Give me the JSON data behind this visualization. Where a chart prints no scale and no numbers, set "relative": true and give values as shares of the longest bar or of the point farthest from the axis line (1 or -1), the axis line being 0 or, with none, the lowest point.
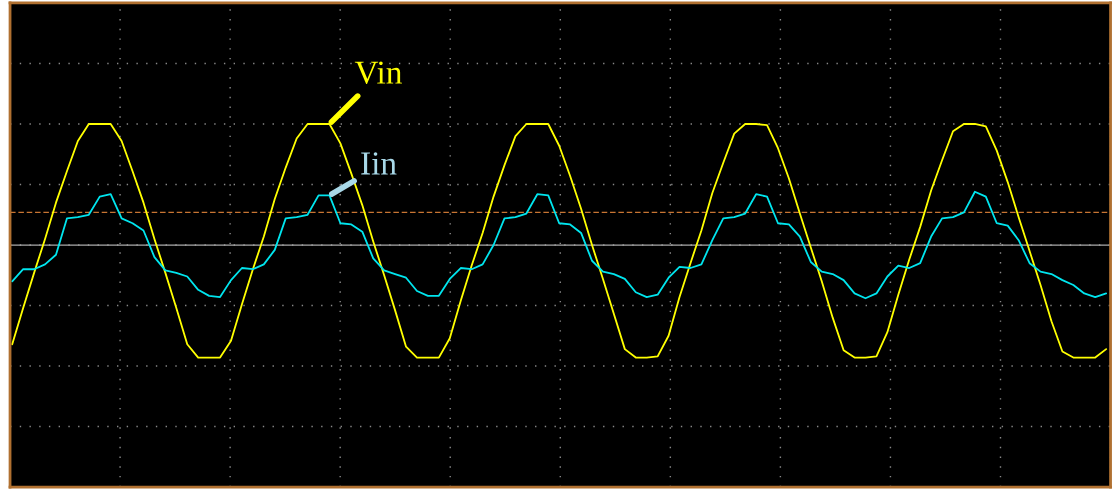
{
  "chart_data": {
    "type": "line",
    "relative": true,
    "categories": [
      null,
      null,
      null,
      null,
      null,
      null,
      null,
      null,
      null,
      null,
      null,
      null,
      null,
      null,
      null,
      null,
      null,
      null,
      null,
      null,
      null,
      null,
      null,
      null,
      null,
      null,
      null,
      null,
      null,
      null,
      null,
      null,
      null,
      null,
      null,
      null,
      null,
      null,
      null,
      null,
      null,
      null,
      null,
      null,
      null,
      null,
      null,
      null,
      null,
      null,
      null,
      null,
      null,
      null,
      null,
      null,
      null,
      null,
      null,
      null,
      null,
      null,
      null,
      null,
      null,
      null,
      null,
      null,
      null,
      null,
      null,
      null,
      null,
      null,
      null,
      null,
      null,
      null,
      null,
      null,
      null,
      null,
      null,
      null,
      null,
      null,
      null,
      null,
      null,
      null,
      null,
      null,
      null,
      null,
      null,
      null,
      null,
      null,
      null,
      null,
      null
    ],
    "series": [
      {
        "name": "Vin",
        "color": "#ffff00",
        "values": [
          -0.82,
          -0.52,
          -0.23,
          0.05,
          0.35,
          0.61,
          0.86,
          1.0,
          1.0,
          1.0,
          0.86,
          0.61,
          0.35,
          0.05,
          -0.23,
          -0.52,
          -0.82,
          -0.93,
          -0.93,
          -0.93,
          -0.79,
          -0.49,
          -0.2,
          0.07,
          0.38,
          0.64,
          0.88,
          1.0,
          1.0,
          1.0,
          0.84,
          0.59,
          0.33,
          0.03,
          -0.25,
          -0.54,
          -0.84,
          -0.93,
          -0.93,
          -0.93,
          -0.77,
          -0.46,
          -0.17,
          0.1,
          0.4,
          0.66,
          0.9,
          1.0,
          1.0,
          1.0,
          0.82,
          0.57,
          0.3,
          0.0,
          -0.28,
          -0.57,
          -0.86,
          -0.93,
          -0.93,
          -0.92,
          -0.75,
          -0.43,
          -0.15,
          0.12,
          0.43,
          0.68,
          0.92,
          1.0,
          1.0,
          0.99,
          0.8,
          0.55,
          0.26,
          -0.02,
          -0.3,
          -0.6,
          -0.87,
          -0.93,
          -0.93,
          -0.92,
          -0.72,
          -0.41,
          -0.12,
          0.15,
          0.45,
          0.7,
          0.94,
          1.0,
          1.0,
          0.98,
          0.78,
          0.52,
          0.23,
          -0.05,
          -0.33,
          -0.63,
          -0.88,
          -0.93,
          -0.93,
          -0.93,
          -0.86
        ]
      },
      {
        "name": "Iin",
        "color": "#00e5ee",
        "values": [
          -0.3,
          -0.2,
          -0.2,
          -0.16,
          -0.08,
          0.22,
          0.23,
          0.25,
          0.4,
          0.42,
          0.22,
          0.18,
          0.12,
          -0.1,
          -0.21,
          -0.23,
          -0.26,
          -0.37,
          -0.42,
          -0.43,
          -0.29,
          -0.19,
          -0.2,
          -0.16,
          -0.04,
          0.22,
          0.23,
          0.25,
          0.41,
          0.41,
          0.18,
          0.17,
          0.11,
          -0.11,
          -0.21,
          -0.24,
          -0.27,
          -0.38,
          -0.42,
          -0.42,
          -0.28,
          -0.19,
          -0.2,
          -0.16,
          0.0,
          0.22,
          0.23,
          0.26,
          0.42,
          0.41,
          0.18,
          0.17,
          0.1,
          -0.13,
          -0.22,
          -0.24,
          -0.28,
          -0.39,
          -0.43,
          -0.41,
          -0.27,
          -0.18,
          -0.19,
          -0.16,
          0.04,
          0.22,
          0.23,
          0.26,
          0.42,
          0.4,
          0.18,
          0.17,
          0.07,
          -0.14,
          -0.22,
          -0.24,
          -0.29,
          -0.4,
          -0.44,
          -0.4,
          -0.26,
          -0.17,
          -0.19,
          -0.15,
          0.07,
          0.22,
          0.23,
          0.27,
          0.44,
          0.4,
          0.18,
          0.16,
          0.04,
          -0.15,
          -0.22,
          -0.24,
          -0.29,
          -0.33,
          -0.4,
          -0.43,
          -0.4
        ]
      }
    ],
    "ref_lines": [
      {
        "axis": "y",
        "value": 0.27,
        "color": "#c87533",
        "line_style": "dashed"
      }
    ],
    "grid": true,
    "legend": false,
    "tick_labels": false,
    "marker": "none",
    "line_style": "solid"
  }
}
